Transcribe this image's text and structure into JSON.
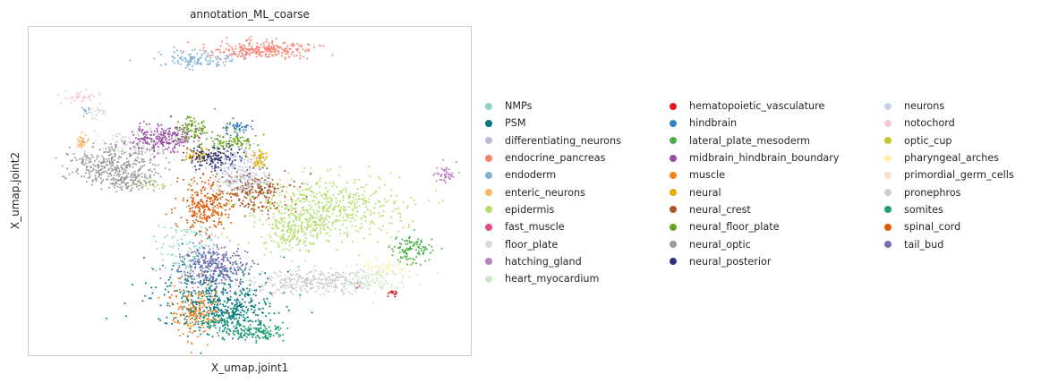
{
  "chart_data": {
    "type": "scatter",
    "title": "annotation_ML_coarse",
    "xlabel": "X_umap.joint1",
    "ylabel": "X_umap.joint2",
    "grid": false,
    "legend_placement": "right",
    "series": [
      {
        "name": "NMPs",
        "color": "#8dd3c7",
        "clusters": [
          [
            37,
            68,
            4,
            5,
            160
          ]
        ]
      },
      {
        "name": "PSM",
        "color": "#00787f",
        "clusters": [
          [
            42,
            83,
            7,
            5,
            420
          ],
          [
            46,
            87,
            4,
            3,
            140
          ]
        ]
      },
      {
        "name": "differentiating_neurons",
        "color": "#bebada",
        "clusters": [
          [
            45,
            43,
            4,
            4,
            90
          ]
        ]
      },
      {
        "name": "endocrine_pancreas",
        "color": "#fb8072",
        "clusters": [
          [
            53,
            7,
            6,
            1.3,
            260
          ]
        ]
      },
      {
        "name": "endoderm",
        "color": "#80b1d3",
        "clusters": [
          [
            38,
            10,
            4,
            1.3,
            120
          ],
          [
            13,
            25,
            0.5,
            1,
            10
          ]
        ]
      },
      {
        "name": "enteric_neurons",
        "color": "#fdb462",
        "clusters": [
          [
            12,
            35,
            0.6,
            1.2,
            30
          ]
        ]
      },
      {
        "name": "epidermis",
        "color": "#b3de69",
        "clusters": [
          [
            67,
            55,
            9,
            5,
            520
          ],
          [
            61,
            60,
            4,
            3,
            120
          ],
          [
            59,
            65,
            4,
            2,
            80
          ],
          [
            27,
            48,
            2,
            0.8,
            30
          ]
        ]
      },
      {
        "name": "fast_muscle",
        "color": "#e7478f",
        "clusters": [
          [
            74,
            79,
            1,
            0.5,
            6
          ]
        ]
      },
      {
        "name": "floor_plate",
        "color": "#d9d9d9",
        "clusters": [
          [
            25,
            35,
            5,
            2,
            130
          ],
          [
            16,
            26,
            1,
            1,
            25
          ]
        ]
      },
      {
        "name": "hatching_gland",
        "color": "#bc80bd",
        "clusters": [
          [
            94,
            45,
            1.2,
            1.5,
            45
          ]
        ]
      },
      {
        "name": "heart_myocardium",
        "color": "#ccebc5",
        "clusters": [
          [
            76,
            77,
            5,
            2,
            140
          ]
        ]
      },
      {
        "name": "hematopoietic_vasculature",
        "color": "#e31a1c",
        "clusters": [
          [
            82.5,
            81,
            0.6,
            0.5,
            14
          ]
        ]
      },
      {
        "name": "hindbrain",
        "color": "#377eb8",
        "clusters": [
          [
            47,
            31,
            1.5,
            1.4,
            50
          ]
        ]
      },
      {
        "name": "lateral_plate_mesoderm",
        "color": "#4daf4a",
        "clusters": [
          [
            87,
            68,
            2.5,
            2,
            110
          ]
        ]
      },
      {
        "name": "midbrain_hindbrain_boundary",
        "color": "#984ea3",
        "clusters": [
          [
            30,
            34,
            3.5,
            2.2,
            220
          ]
        ]
      },
      {
        "name": "muscle",
        "color": "#f58215",
        "clusters": [
          [
            38,
            86,
            3,
            4,
            180
          ]
        ]
      },
      {
        "name": "neural",
        "color": "#e6ab02",
        "clusters": [
          [
            38,
            39,
            1.5,
            1.2,
            50
          ],
          [
            52,
            40,
            1,
            1.2,
            40
          ]
        ]
      },
      {
        "name": "neural_crest",
        "color": "#a6562a",
        "clusters": [
          [
            51,
            50,
            4,
            3,
            230
          ]
        ]
      },
      {
        "name": "neural_floor_plate",
        "color": "#66a61e",
        "clusters": [
          [
            37,
            31,
            2,
            2,
            80
          ],
          [
            46,
            35,
            3,
            1.5,
            90
          ]
        ]
      },
      {
        "name": "neural_optic",
        "color": "#999999",
        "clusters": [
          [
            19,
            42,
            5,
            3,
            330
          ],
          [
            23,
            47,
            3,
            1.5,
            100
          ]
        ]
      },
      {
        "name": "neural_posterior",
        "color": "#2f3476",
        "clusters": [
          [
            42,
            40,
            3,
            2,
            140
          ]
        ]
      },
      {
        "name": "neurons",
        "color": "#c6d3ec",
        "clusters": [
          [
            48,
            45,
            3,
            3,
            140
          ]
        ]
      },
      {
        "name": "notochord",
        "color": "#f4c6e0",
        "clusters": [
          [
            11,
            21,
            2.5,
            0.8,
            40
          ]
        ]
      },
      {
        "name": "optic_cup",
        "color": "#c6c22a",
        "clusters": [
          [
            52,
            41,
            0.8,
            0.8,
            12
          ]
        ]
      },
      {
        "name": "pharyngeal_arches",
        "color": "#fff0a8",
        "clusters": [
          [
            80,
            73,
            3,
            1.2,
            50
          ]
        ]
      },
      {
        "name": "primordial_germ_cells",
        "color": "#fbddc8",
        "clusters": [
          [
            11,
            36,
            0.4,
            0.4,
            6
          ]
        ]
      },
      {
        "name": "pronephros",
        "color": "#cccccc",
        "clusters": [
          [
            62,
            78,
            7,
            2,
            240
          ],
          [
            70,
            77,
            4,
            1.5,
            60
          ]
        ]
      },
      {
        "name": "somites",
        "color": "#1f9e77",
        "clusters": [
          [
            52,
            93,
            3,
            1.2,
            120
          ],
          [
            44,
            90,
            3,
            2,
            80
          ]
        ]
      },
      {
        "name": "spinal_cord",
        "color": "#dd5c05",
        "clusters": [
          [
            40,
            54,
            3,
            4,
            260
          ]
        ]
      },
      {
        "name": "tail_bud",
        "color": "#7570b3",
        "clusters": [
          [
            42,
            73,
            4,
            3,
            320
          ]
        ]
      }
    ]
  }
}
